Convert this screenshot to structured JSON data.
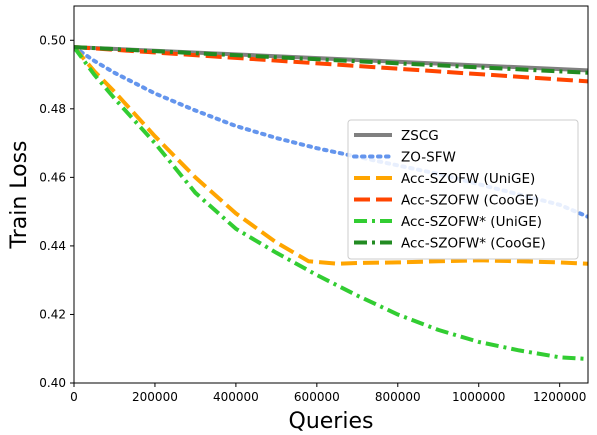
{
  "chart_data": {
    "type": "line",
    "title": "",
    "xlabel": "Queries",
    "ylabel": "Train Loss",
    "xlim": [
      0,
      1270000
    ],
    "ylim": [
      0.4,
      0.51
    ],
    "xticks": [
      0,
      200000,
      400000,
      600000,
      800000,
      1000000,
      1200000
    ],
    "xtick_labels": [
      "0",
      "200000",
      "400000",
      "600000",
      "800000",
      "1000000",
      "1200000"
    ],
    "yticks": [
      0.4,
      0.42,
      0.44,
      0.46,
      0.48,
      0.5
    ],
    "ytick_labels": [
      "0.40",
      "0.42",
      "0.44",
      "0.46",
      "0.48",
      "0.50"
    ],
    "grid": false,
    "legend_position": "center-right",
    "series": [
      {
        "name": "ZSCG",
        "color": "#808080",
        "dash": "solid",
        "x": [
          0,
          1270000
        ],
        "y": [
          0.498,
          0.4912
        ]
      },
      {
        "name": "ZO-SFW",
        "color": "#6495ED",
        "dash": "dotted",
        "x": [
          0,
          50000,
          100000,
          200000,
          300000,
          400000,
          500000,
          600000,
          700000,
          800000,
          900000,
          1000000,
          1100000,
          1200000,
          1270000
        ],
        "y": [
          0.498,
          0.494,
          0.4905,
          0.4845,
          0.4795,
          0.475,
          0.4715,
          0.4685,
          0.466,
          0.4635,
          0.461,
          0.458,
          0.455,
          0.452,
          0.4485
        ]
      },
      {
        "name": "Acc-SZOFW (UniGE)",
        "color": "#FFA500",
        "dash": "dashed",
        "x": [
          0,
          50000,
          100000,
          200000,
          300000,
          400000,
          500000,
          580000,
          650000,
          700000,
          800000,
          900000,
          1000000,
          1100000,
          1200000,
          1270000
        ],
        "y": [
          0.498,
          0.491,
          0.485,
          0.472,
          0.46,
          0.4495,
          0.441,
          0.4355,
          0.4348,
          0.435,
          0.4352,
          0.4355,
          0.4358,
          0.4355,
          0.4352,
          0.4348
        ]
      },
      {
        "name": "Acc-SZOFW (CooGE)",
        "color": "#FF4500",
        "dash": "dashed",
        "x": [
          0,
          1270000
        ],
        "y": [
          0.498,
          0.488
        ]
      },
      {
        "name": "Acc-SZOFW* (UniGE)",
        "color": "#32CD32",
        "dash": "dashdot",
        "x": [
          0,
          50000,
          100000,
          200000,
          300000,
          400000,
          500000,
          600000,
          700000,
          800000,
          900000,
          1000000,
          1100000,
          1200000,
          1270000
        ],
        "y": [
          0.498,
          0.49,
          0.483,
          0.47,
          0.4555,
          0.445,
          0.438,
          0.4315,
          0.4255,
          0.42,
          0.4155,
          0.412,
          0.4095,
          0.4075,
          0.407
        ]
      },
      {
        "name": "Acc-SZOFW* (CooGE)",
        "color": "#228B22",
        "dash": "dashdot",
        "x": [
          0,
          1270000
        ],
        "y": [
          0.498,
          0.4905
        ]
      }
    ]
  }
}
